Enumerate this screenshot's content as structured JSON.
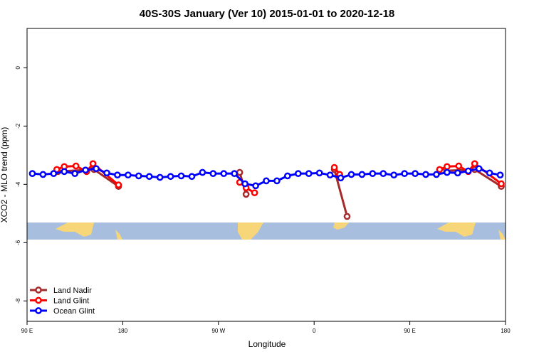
{
  "chart_data": {
    "type": "line",
    "title": "40S-30S January (Ver 10)   2015-01-01 to 2020-12-18",
    "x_label": "Longitude",
    "y_label": "XCO2 - MLO trend (ppm)",
    "xlim": [
      90,
      540
    ],
    "ylim": [
      -8.7,
      1.35
    ],
    "xticks": [
      {
        "value": 90,
        "label": "90 E"
      },
      180,
      {
        "value": 270,
        "label": "90 W"
      },
      {
        "value": 360,
        "label": "0"
      },
      {
        "value": 450,
        "label": "90 E"
      },
      {
        "value": 540,
        "label": "180"
      }
    ],
    "yticks": [
      0,
      -2,
      -4,
      -6,
      -8
    ],
    "legend": "bottom-left",
    "series": [
      {
        "name": "Land Nadir",
        "color": "#a52a2a",
        "x": [
          119,
          153,
          176,
          null,
          290,
          296,
          null,
          379,
          391,
          null,
          480,
          511,
          536
        ],
        "values": [
          -3.56,
          -3.49,
          -4.07,
          null,
          -3.59,
          -4.34,
          null,
          -3.49,
          -5.1,
          null,
          -3.54,
          -3.49,
          -4.07
        ]
      },
      {
        "name": "Land Glint",
        "color": "#ff0000",
        "x": [
          118,
          125,
          136,
          146,
          152,
          176,
          null,
          290,
          296,
          304,
          null,
          379,
          384,
          null,
          478,
          485,
          496,
          505,
          511,
          536
        ],
        "values": [
          -3.49,
          -3.39,
          -3.37,
          -3.56,
          -3.29,
          -4.02,
          null,
          -3.93,
          -4.12,
          -4.29,
          null,
          -3.42,
          -3.66,
          null,
          -3.49,
          -3.39,
          -3.37,
          -3.56,
          -3.29,
          -3.98
        ]
      },
      {
        "name": "Ocean Glint",
        "color": "#0000ff",
        "x": [
          95,
          105,
          115,
          125,
          135,
          145,
          155,
          165,
          175,
          185,
          195,
          205,
          215,
          225,
          235,
          245,
          255,
          265,
          275,
          285,
          295,
          305,
          315,
          325,
          335,
          345,
          355,
          365,
          375,
          385,
          395,
          405,
          415,
          425,
          435,
          445,
          455,
          465,
          475,
          485,
          495,
          505,
          515,
          525,
          535
        ],
        "values": [
          -3.63,
          -3.66,
          -3.63,
          -3.56,
          -3.63,
          -3.51,
          -3.46,
          -3.61,
          -3.68,
          -3.68,
          -3.71,
          -3.73,
          -3.76,
          -3.73,
          -3.71,
          -3.73,
          -3.59,
          -3.63,
          -3.63,
          -3.63,
          -3.98,
          -4.05,
          -3.88,
          -3.88,
          -3.71,
          -3.63,
          -3.63,
          -3.61,
          -3.68,
          -3.78,
          -3.66,
          -3.66,
          -3.63,
          -3.63,
          -3.68,
          -3.63,
          -3.63,
          -3.66,
          -3.66,
          -3.59,
          -3.61,
          -3.54,
          -3.46,
          -3.61,
          -3.68
        ]
      }
    ]
  }
}
